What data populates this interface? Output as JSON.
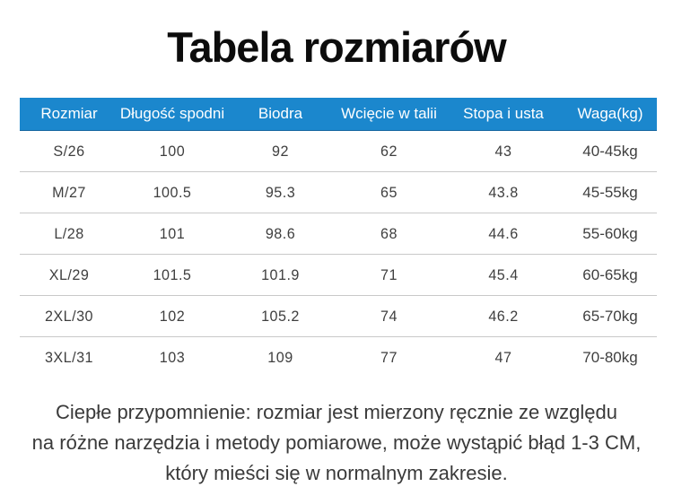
{
  "page": {
    "title": "Tabela rozmiarów"
  },
  "size_table": {
    "columns": [
      "Rozmiar",
      "Długość spodni",
      "Biodra",
      "Wcięcie w talii",
      "Stopa i usta",
      "Waga(kg)"
    ],
    "rows": [
      [
        "S/26",
        "100",
        "92",
        "62",
        "43",
        "40-45kg"
      ],
      [
        "M/27",
        "100.5",
        "95.3",
        "65",
        "43.8",
        "45-55kg"
      ],
      [
        "L/28",
        "101",
        "98.6",
        "68",
        "44.6",
        "55-60kg"
      ],
      [
        "XL/29",
        "101.5",
        "101.9",
        "71",
        "45.4",
        "60-65kg"
      ],
      [
        "2XL/30",
        "102",
        "105.2",
        "74",
        "46.2",
        "65-70kg"
      ],
      [
        "3XL/31",
        "103",
        "109",
        "77",
        "47",
        "70-80kg"
      ]
    ]
  },
  "note": {
    "lines": [
      "Ciepłe przypomnienie: rozmiar jest mierzony ręcznie ze względu",
      "na różne narzędzia i metody pomiarowe, może wystąpić błąd 1-3 CM,",
      "który mieści się w normalnym zakresie."
    ]
  },
  "colors": {
    "header_bg": "#1b87cd",
    "header_text": "#ffffff",
    "body_text": "#3f3f3f",
    "divider": "#c9c9c9",
    "title_text": "#0c0c0c",
    "note_text": "#3a3a3a"
  }
}
